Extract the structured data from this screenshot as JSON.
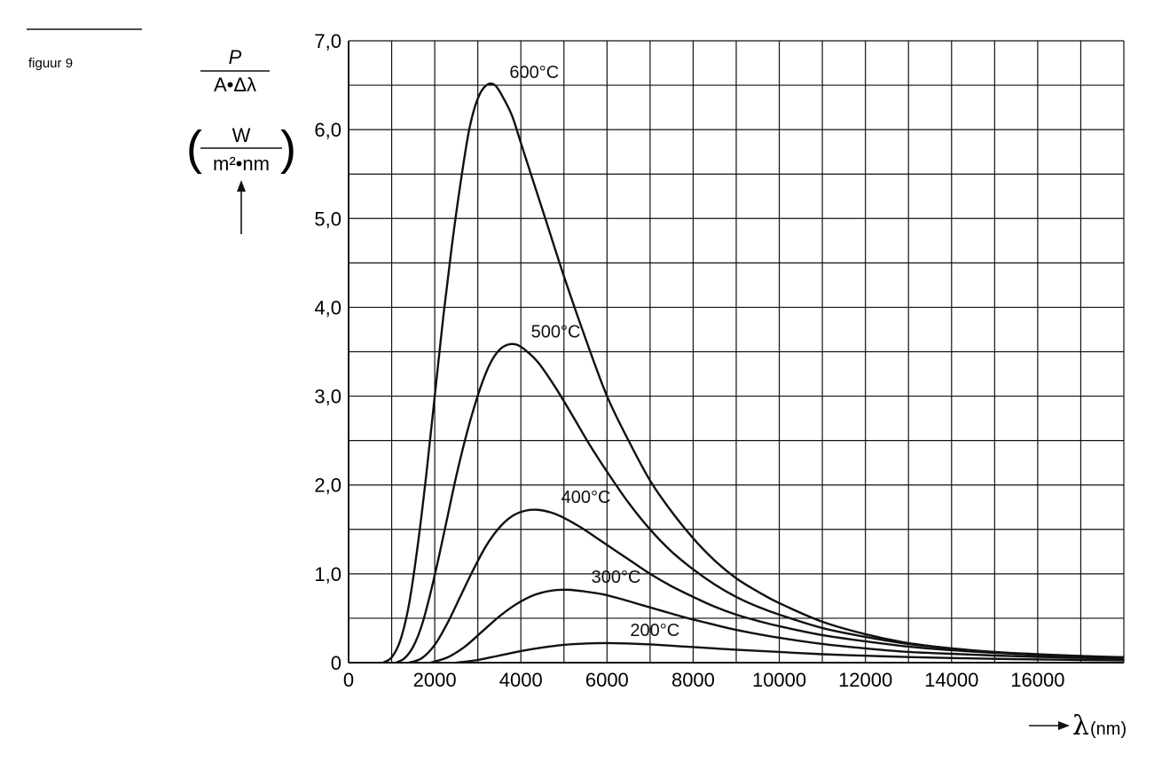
{
  "figure_label": "figuur 9",
  "chart_data": {
    "type": "line",
    "ylabel": {
      "numerator": "P",
      "denominator": "A•Δλ",
      "unit_numerator": "W",
      "unit_denominator": "m²•nm",
      "left_paren": "(",
      "right_paren": ")"
    },
    "xlabel": {
      "symbol": "λ",
      "unit": "(nm)"
    },
    "xlim": [
      0,
      18000
    ],
    "ylim": [
      0,
      7.0
    ],
    "grid": true,
    "x_ticks": [
      {
        "value": 0,
        "label": "0"
      },
      {
        "value": 2000,
        "label": "2000"
      },
      {
        "value": 4000,
        "label": "4000"
      },
      {
        "value": 6000,
        "label": "6000"
      },
      {
        "value": 8000,
        "label": "8000"
      },
      {
        "value": 10000,
        "label": "10000"
      },
      {
        "value": 12000,
        "label": "12000"
      },
      {
        "value": 14000,
        "label": "14000"
      },
      {
        "value": 16000,
        "label": "16000"
      }
    ],
    "y_ticks": [
      {
        "value": 0,
        "label": "0"
      },
      {
        "value": 1,
        "label": "1,0"
      },
      {
        "value": 2,
        "label": "2,0"
      },
      {
        "value": 3,
        "label": "3,0"
      },
      {
        "value": 4,
        "label": "4,0"
      },
      {
        "value": 5,
        "label": "5,0"
      },
      {
        "value": 6,
        "label": "6,0"
      },
      {
        "value": 7,
        "label": "7,0"
      }
    ],
    "series": [
      {
        "name": "600°C",
        "x": [
          800,
          1000,
          1200,
          1400,
          1600,
          1800,
          2000,
          2200,
          2400,
          2600,
          2800,
          3000,
          3200,
          3400,
          3600,
          3800,
          4000,
          4200,
          4600,
          5000,
          5500,
          6000,
          6500,
          7000,
          7500,
          8000,
          8500,
          9000,
          9500,
          10000,
          11000,
          12000,
          13000,
          14000,
          15000,
          16000,
          17000,
          18000
        ],
        "y": [
          0.0,
          0.06,
          0.25,
          0.65,
          1.3,
          2.1,
          3.0,
          3.9,
          4.7,
          5.4,
          6.0,
          6.35,
          6.5,
          6.5,
          6.35,
          6.15,
          5.85,
          5.55,
          4.95,
          4.35,
          3.65,
          3.0,
          2.5,
          2.05,
          1.7,
          1.4,
          1.15,
          0.95,
          0.8,
          0.67,
          0.46,
          0.32,
          0.22,
          0.16,
          0.115,
          0.085,
          0.06,
          0.045
        ]
      },
      {
        "name": "500°C",
        "x": [
          1100,
          1300,
          1500,
          1700,
          1900,
          2100,
          2300,
          2500,
          2700,
          2900,
          3100,
          3300,
          3500,
          3700,
          3900,
          4100,
          4400,
          4800,
          5200,
          5600,
          6000,
          6500,
          7000,
          7500,
          8000,
          8500,
          9000,
          9500,
          10000,
          11000,
          12000,
          13000,
          14000,
          15000,
          16000,
          17000,
          18000
        ],
        "y": [
          0.0,
          0.05,
          0.18,
          0.42,
          0.78,
          1.2,
          1.65,
          2.1,
          2.5,
          2.85,
          3.15,
          3.38,
          3.52,
          3.58,
          3.58,
          3.52,
          3.38,
          3.1,
          2.78,
          2.45,
          2.15,
          1.8,
          1.5,
          1.25,
          1.05,
          0.88,
          0.74,
          0.63,
          0.54,
          0.39,
          0.29,
          0.21,
          0.16,
          0.12,
          0.095,
          0.075,
          0.06
        ]
      },
      {
        "name": "400°C",
        "x": [
          1400,
          1700,
          2000,
          2300,
          2600,
          2900,
          3200,
          3500,
          3800,
          4100,
          4400,
          4700,
          5000,
          5400,
          5800,
          6200,
          6600,
          7000,
          7500,
          8000,
          8500,
          9000,
          9500,
          10000,
          11000,
          12000,
          13000,
          14000,
          15000,
          16000,
          17000,
          18000
        ],
        "y": [
          0.0,
          0.05,
          0.2,
          0.45,
          0.75,
          1.05,
          1.32,
          1.52,
          1.65,
          1.71,
          1.72,
          1.69,
          1.63,
          1.52,
          1.39,
          1.26,
          1.13,
          1.0,
          0.86,
          0.74,
          0.63,
          0.54,
          0.47,
          0.41,
          0.31,
          0.24,
          0.18,
          0.14,
          0.11,
          0.09,
          0.07,
          0.06
        ]
      },
      {
        "name": "300°C",
        "x": [
          1900,
          2300,
          2700,
          3100,
          3500,
          3900,
          4300,
          4700,
          5100,
          5500,
          5900,
          6300,
          6800,
          7300,
          7800,
          8300,
          8800,
          9300,
          10000,
          11000,
          12000,
          13000,
          14000,
          15000,
          16000,
          17000,
          18000
        ],
        "y": [
          0.0,
          0.06,
          0.18,
          0.35,
          0.52,
          0.66,
          0.76,
          0.81,
          0.82,
          0.8,
          0.77,
          0.72,
          0.65,
          0.58,
          0.51,
          0.45,
          0.39,
          0.34,
          0.28,
          0.21,
          0.16,
          0.12,
          0.1,
          0.08,
          0.065,
          0.055,
          0.045
        ]
      },
      {
        "name": "200°C",
        "x": [
          2500,
          3000,
          3500,
          4000,
          4500,
          5000,
          5500,
          6000,
          6500,
          7000,
          7500,
          8000,
          8500,
          9000,
          10000,
          11000,
          12000,
          13000,
          14000,
          15000,
          16000,
          17000,
          18000
        ],
        "y": [
          0.0,
          0.03,
          0.08,
          0.13,
          0.17,
          0.2,
          0.215,
          0.22,
          0.215,
          0.205,
          0.19,
          0.175,
          0.16,
          0.145,
          0.12,
          0.095,
          0.078,
          0.063,
          0.052,
          0.043,
          0.036,
          0.03,
          0.026
        ]
      }
    ]
  }
}
